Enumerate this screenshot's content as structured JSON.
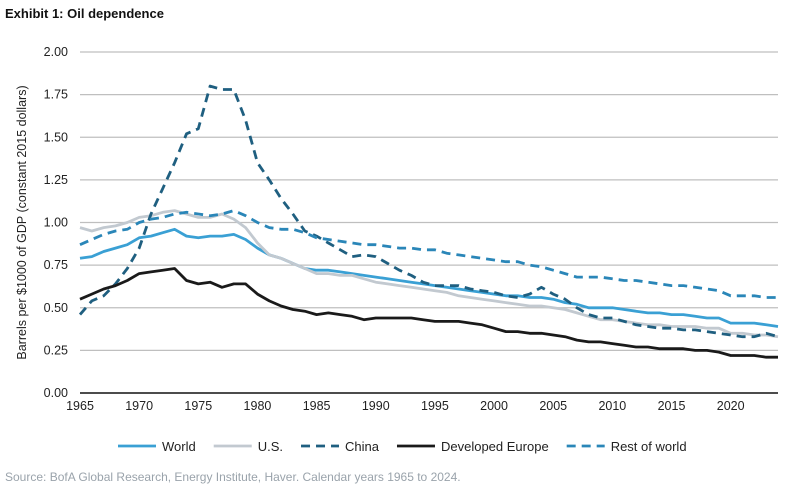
{
  "chart_data": {
    "type": "line",
    "title": "Exhibit 1: Oil dependence",
    "ylabel": "Barrels per $1000 of GDP (constant 2015 dollars)",
    "xlabel": "",
    "xlim": [
      1965,
      2024
    ],
    "ylim": [
      0,
      2
    ],
    "x_ticks": [
      "1965",
      "1970",
      "1975",
      "1980",
      "1985",
      "1990",
      "1995",
      "2000",
      "2005",
      "2010",
      "2015",
      "2020"
    ],
    "y_ticks": [
      "0.00",
      "0.25",
      "0.50",
      "0.75",
      "1.00",
      "1.25",
      "1.50",
      "1.75",
      "2.00"
    ],
    "grid": true,
    "legend_position": "bottom",
    "source": "Source: BofA Global Research, Energy Institute, Haver. Calendar years 1965 to 2024.",
    "x_start": 1965,
    "series": [
      {
        "name": "World",
        "color": "#3aa0d4",
        "dash": false,
        "values": [
          0.79,
          0.8,
          0.83,
          0.85,
          0.87,
          0.91,
          0.92,
          0.94,
          0.96,
          0.92,
          0.91,
          0.92,
          0.92,
          0.93,
          0.9,
          0.85,
          0.81,
          0.79,
          0.76,
          0.73,
          0.72,
          0.72,
          0.71,
          0.7,
          0.69,
          0.68,
          0.67,
          0.66,
          0.65,
          0.64,
          0.63,
          0.62,
          0.61,
          0.6,
          0.59,
          0.58,
          0.57,
          0.57,
          0.56,
          0.56,
          0.55,
          0.53,
          0.52,
          0.5,
          0.5,
          0.5,
          0.49,
          0.48,
          0.47,
          0.47,
          0.46,
          0.46,
          0.45,
          0.44,
          0.44,
          0.41,
          0.41,
          0.41,
          0.4,
          0.39
        ]
      },
      {
        "name": "U.S.",
        "color": "#c2c9d0",
        "dash": false,
        "values": [
          0.97,
          0.95,
          0.97,
          0.98,
          1.0,
          1.03,
          1.04,
          1.06,
          1.07,
          1.05,
          1.03,
          1.03,
          1.05,
          1.02,
          0.97,
          0.88,
          0.81,
          0.79,
          0.76,
          0.73,
          0.7,
          0.7,
          0.69,
          0.69,
          0.67,
          0.65,
          0.64,
          0.63,
          0.62,
          0.61,
          0.6,
          0.59,
          0.57,
          0.56,
          0.55,
          0.54,
          0.53,
          0.52,
          0.51,
          0.51,
          0.5,
          0.49,
          0.47,
          0.45,
          0.43,
          0.43,
          0.42,
          0.41,
          0.4,
          0.4,
          0.39,
          0.39,
          0.39,
          0.38,
          0.38,
          0.35,
          0.35,
          0.34,
          0.34,
          0.33
        ]
      },
      {
        "name": "China",
        "color": "#1f5f80",
        "dash": true,
        "values": [
          0.46,
          0.54,
          0.57,
          0.64,
          0.73,
          0.85,
          1.05,
          1.2,
          1.35,
          1.52,
          1.55,
          1.8,
          1.78,
          1.78,
          1.6,
          1.35,
          1.25,
          1.14,
          1.05,
          0.95,
          0.92,
          0.88,
          0.84,
          0.8,
          0.81,
          0.8,
          0.76,
          0.72,
          0.69,
          0.65,
          0.63,
          0.63,
          0.63,
          0.61,
          0.6,
          0.59,
          0.57,
          0.56,
          0.58,
          0.62,
          0.58,
          0.55,
          0.5,
          0.46,
          0.44,
          0.44,
          0.42,
          0.4,
          0.39,
          0.38,
          0.38,
          0.37,
          0.37,
          0.36,
          0.35,
          0.34,
          0.33,
          0.33,
          0.35,
          0.33
        ]
      },
      {
        "name": "Developed Europe",
        "color": "#1a1a1a",
        "dash": false,
        "values": [
          0.55,
          0.58,
          0.61,
          0.63,
          0.66,
          0.7,
          0.71,
          0.72,
          0.73,
          0.66,
          0.64,
          0.65,
          0.62,
          0.64,
          0.64,
          0.58,
          0.54,
          0.51,
          0.49,
          0.48,
          0.46,
          0.47,
          0.46,
          0.45,
          0.43,
          0.44,
          0.44,
          0.44,
          0.44,
          0.43,
          0.42,
          0.42,
          0.42,
          0.41,
          0.4,
          0.38,
          0.36,
          0.36,
          0.35,
          0.35,
          0.34,
          0.33,
          0.31,
          0.3,
          0.3,
          0.29,
          0.28,
          0.27,
          0.27,
          0.26,
          0.26,
          0.26,
          0.25,
          0.25,
          0.24,
          0.22,
          0.22,
          0.22,
          0.21,
          0.21
        ]
      },
      {
        "name": "Rest of world",
        "color": "#2a86b8",
        "dash": true,
        "values": [
          0.87,
          0.9,
          0.93,
          0.95,
          0.96,
          1.0,
          1.02,
          1.03,
          1.05,
          1.06,
          1.05,
          1.04,
          1.05,
          1.07,
          1.04,
          1.0,
          0.97,
          0.96,
          0.96,
          0.94,
          0.91,
          0.9,
          0.89,
          0.88,
          0.87,
          0.87,
          0.86,
          0.85,
          0.85,
          0.84,
          0.84,
          0.82,
          0.81,
          0.8,
          0.79,
          0.78,
          0.77,
          0.77,
          0.75,
          0.74,
          0.72,
          0.7,
          0.68,
          0.68,
          0.68,
          0.67,
          0.66,
          0.66,
          0.65,
          0.64,
          0.63,
          0.63,
          0.62,
          0.61,
          0.6,
          0.57,
          0.57,
          0.57,
          0.56,
          0.56
        ]
      }
    ]
  }
}
